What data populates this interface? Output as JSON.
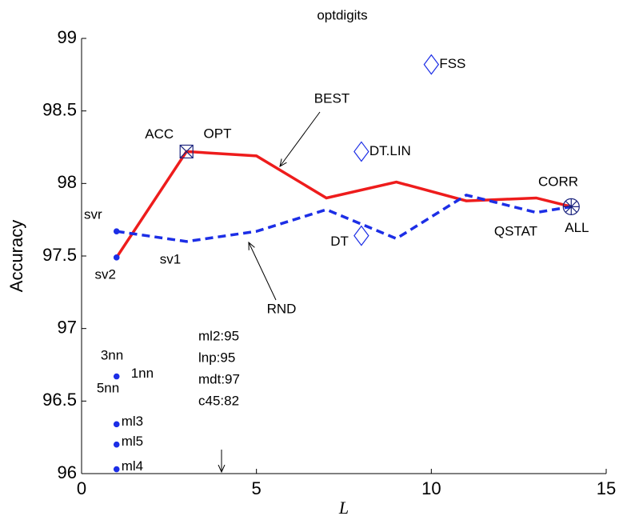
{
  "chart_data": {
    "type": "line",
    "title": "optdigits",
    "x_label": "L",
    "y_label": "Accuracy",
    "xlim": [
      0,
      15
    ],
    "ylim": [
      96,
      99
    ],
    "xticks": [
      0,
      5,
      10,
      15
    ],
    "yticks": [
      96,
      96.5,
      97,
      97.5,
      98,
      98.5,
      99
    ],
    "series": [
      {
        "name": "BEST",
        "color": "#ee1c1c",
        "style": "solid",
        "x": [
          1,
          3,
          5,
          7,
          9,
          11,
          13,
          14
        ],
        "values": [
          97.49,
          98.22,
          98.19,
          97.9,
          98.01,
          97.88,
          97.9,
          97.84
        ]
      },
      {
        "name": "RND",
        "color": "#1c2ee6",
        "style": "dashed",
        "x": [
          1,
          3,
          5,
          7,
          9,
          11,
          13,
          14
        ],
        "values": [
          97.67,
          97.6,
          97.67,
          97.82,
          97.62,
          97.92,
          97.8,
          97.84
        ]
      }
    ],
    "points": [
      {
        "label": "svr",
        "x": 1,
        "y": 97.67,
        "marker": "dot"
      },
      {
        "label": "sv2",
        "x": 1,
        "y": 97.49,
        "marker": "dot"
      },
      {
        "label": "1nn",
        "x": 1,
        "y": 96.67,
        "marker": "dot"
      },
      {
        "label": "ml3",
        "x": 1,
        "y": 96.34,
        "marker": "dot"
      },
      {
        "label": "ml5",
        "x": 1,
        "y": 96.2,
        "marker": "dot"
      },
      {
        "label": "ml4",
        "x": 1,
        "y": 96.03,
        "marker": "dot"
      },
      {
        "label": "FSS",
        "x": 10,
        "y": 98.82,
        "marker": "diamond"
      },
      {
        "label": "DT.LIN",
        "x": 8,
        "y": 98.22,
        "marker": "diamond"
      },
      {
        "label": "DT",
        "x": 8,
        "y": 97.64,
        "marker": "diamond"
      },
      {
        "label": "ACC",
        "x": 3,
        "y": 98.22,
        "marker": "boxed-x"
      },
      {
        "label": "ALL",
        "x": 14,
        "y": 97.84,
        "marker": "circled-star"
      }
    ],
    "annotations": [
      "OPT",
      "CORR",
      "QSTAT",
      "sv1",
      "3nn",
      "5nn"
    ],
    "note_lines": [
      "ml2:95",
      "lnp:95",
      "mdt:97",
      "c45:82"
    ]
  }
}
